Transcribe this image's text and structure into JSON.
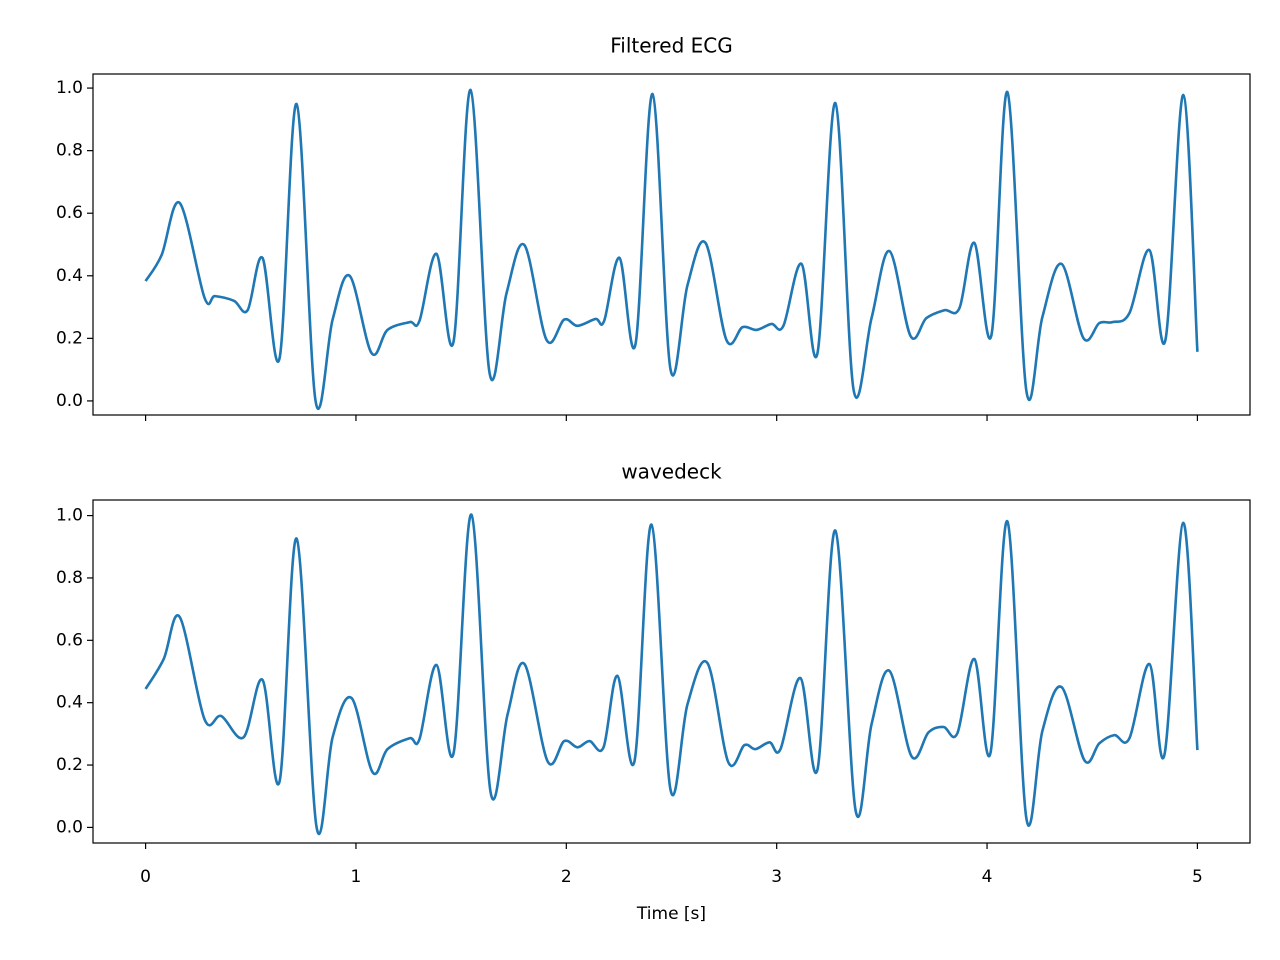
{
  "chart_data": [
    {
      "type": "line",
      "title": "Filtered ECG",
      "color": "#1f77b4",
      "xlim": [
        -0.25,
        5.25
      ],
      "xticks": [
        0,
        1,
        2,
        3,
        4,
        5
      ],
      "show_xtick_labels": false,
      "ylim": [
        -0.045,
        1.045
      ],
      "yticks": [
        {
          "value": 0,
          "label": "0.0"
        },
        0.2,
        0.4,
        0.6,
        0.8,
        {
          "value": 1,
          "label": "1.0"
        }
      ],
      "x": [
        0,
        0.076,
        0.162,
        0.28,
        0.33,
        0.42,
        0.485,
        0.556,
        0.637,
        0.718,
        0.808,
        0.889,
        0.97,
        1.074,
        1.15,
        1.255,
        1.302,
        1.383,
        1.464,
        1.545,
        1.635,
        1.716,
        1.801,
        1.906,
        1.99,
        2.053,
        2.139,
        2.18,
        2.253,
        2.329,
        2.41,
        2.495,
        2.576,
        2.662,
        2.761,
        2.838,
        2.904,
        2.975,
        3.032,
        3.118,
        3.194,
        3.279,
        3.365,
        3.451,
        3.536,
        3.636,
        3.712,
        3.797,
        3.869,
        3.94,
        4.021,
        4.097,
        4.187,
        4.263,
        4.354,
        4.458,
        4.534,
        4.596,
        4.677,
        4.772,
        4.848,
        4.933,
        5.0
      ],
      "values": [
        0.383,
        0.466,
        0.633,
        0.33,
        0.335,
        0.32,
        0.29,
        0.457,
        0.137,
        0.949,
        0.0,
        0.26,
        0.4,
        0.153,
        0.227,
        0.252,
        0.256,
        0.47,
        0.19,
        0.994,
        0.09,
        0.345,
        0.498,
        0.195,
        0.26,
        0.24,
        0.262,
        0.256,
        0.457,
        0.182,
        0.981,
        0.102,
        0.37,
        0.505,
        0.195,
        0.236,
        0.227,
        0.246,
        0.24,
        0.438,
        0.153,
        0.952,
        0.038,
        0.265,
        0.479,
        0.208,
        0.265,
        0.29,
        0.297,
        0.505,
        0.211,
        0.987,
        0.032,
        0.268,
        0.438,
        0.201,
        0.249,
        0.252,
        0.281,
        0.482,
        0.195,
        0.978,
        0.157
      ]
    },
    {
      "type": "line",
      "title": "wavedeck",
      "color": "#1f77b4",
      "xlabel": "Time [s]",
      "xlim": [
        -0.25,
        5.25
      ],
      "xticks": [
        0,
        1,
        2,
        3,
        4,
        5
      ],
      "show_xtick_labels": true,
      "ylim": [
        -0.05,
        1.05
      ],
      "yticks": [
        {
          "value": 0,
          "label": "0.0"
        },
        0.2,
        0.4,
        0.6,
        0.8,
        {
          "value": 1,
          "label": "1.0"
        }
      ],
      "x": [
        0,
        0.086,
        0.162,
        0.28,
        0.36,
        0.466,
        0.556,
        0.637,
        0.718,
        0.813,
        0.889,
        0.979,
        1.079,
        1.15,
        1.255,
        1.302,
        1.383,
        1.464,
        1.549,
        1.64,
        1.721,
        1.801,
        1.911,
        1.99,
        2.053,
        2.11,
        2.177,
        2.243,
        2.324,
        2.405,
        2.495,
        2.576,
        2.671,
        2.77,
        2.847,
        2.899,
        2.966,
        3.018,
        3.113,
        3.194,
        3.279,
        3.375,
        3.451,
        3.536,
        3.641,
        3.722,
        3.793,
        3.859,
        3.94,
        4.016,
        4.097,
        4.187,
        4.263,
        4.354,
        4.463,
        4.534,
        4.605,
        4.677,
        4.772,
        4.843,
        4.933,
        5.0
      ],
      "values": [
        0.444,
        0.54,
        0.675,
        0.347,
        0.357,
        0.289,
        0.473,
        0.148,
        0.926,
        0.0,
        0.289,
        0.415,
        0.177,
        0.251,
        0.286,
        0.283,
        0.521,
        0.238,
        1.003,
        0.113,
        0.363,
        0.524,
        0.212,
        0.277,
        0.257,
        0.277,
        0.257,
        0.486,
        0.212,
        0.971,
        0.122,
        0.395,
        0.527,
        0.209,
        0.264,
        0.251,
        0.273,
        0.251,
        0.479,
        0.186,
        0.952,
        0.055,
        0.331,
        0.502,
        0.228,
        0.305,
        0.322,
        0.302,
        0.54,
        0.238,
        0.981,
        0.029,
        0.309,
        0.45,
        0.215,
        0.27,
        0.296,
        0.286,
        0.524,
        0.232,
        0.977,
        0.248
      ]
    }
  ]
}
